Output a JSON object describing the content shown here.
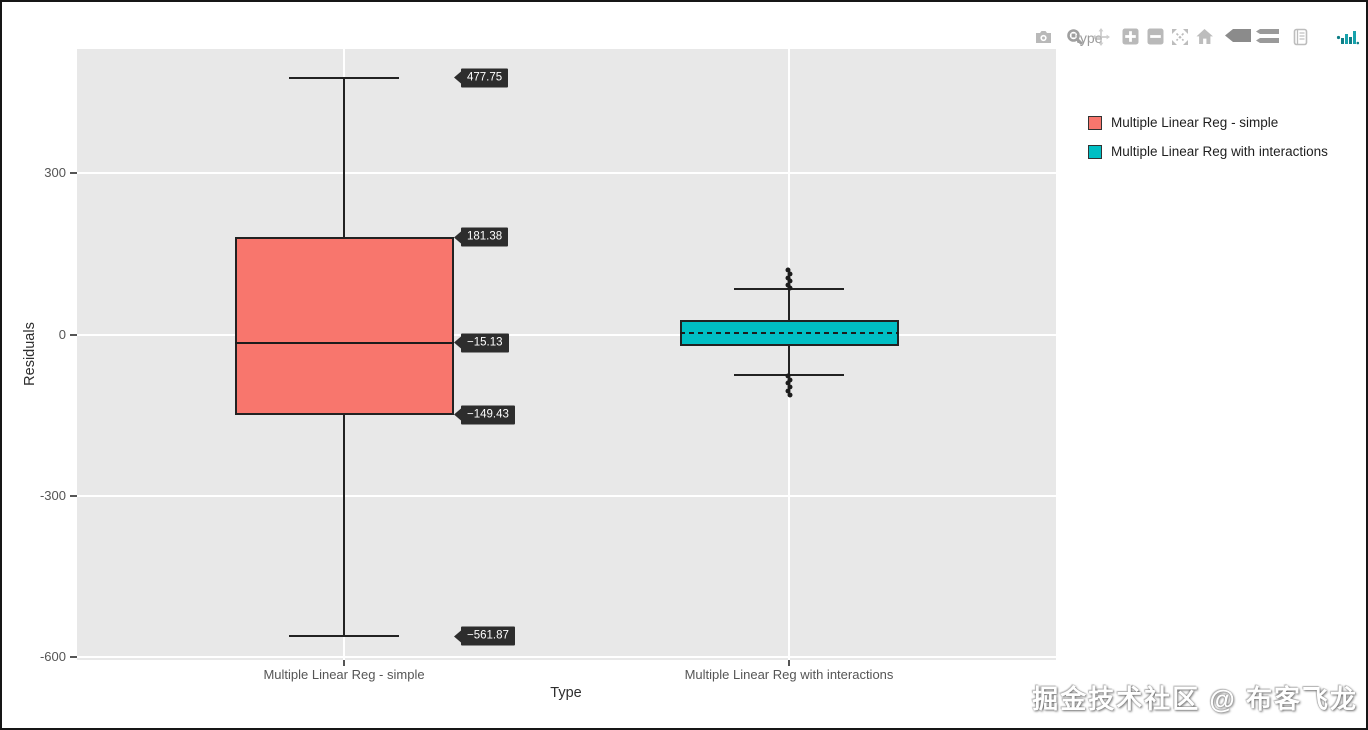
{
  "page": {
    "watermark": "掘金技术社区 @ 布客飞龙"
  },
  "modebar": {
    "buttons": [
      "download-plot-as-png",
      "zoom",
      "pan",
      "zoom-in",
      "zoom-out",
      "autoscale",
      "reset-axes",
      "show-closest-data-on-hover",
      "compare-data-on-hover",
      "notes",
      "plotly-logo"
    ]
  },
  "chart_data": {
    "type": "box",
    "title": "",
    "xlabel": "Type",
    "ylabel": "Residuals",
    "legend_title": "type",
    "legend_position": "right",
    "grid": true,
    "categories": [
      "Multiple Linear Reg - simple",
      "Multiple Linear Reg with interactions"
    ],
    "ytick_labels": [
      "300",
      "0",
      "-300",
      "-600"
    ],
    "ytick_values": [
      300,
      0,
      -300,
      -600
    ],
    "ylim": [
      -606,
      532
    ],
    "series": [
      {
        "name": "Multiple Linear Reg - simple",
        "color": "#F8766D",
        "whisker_low": -561.87,
        "q1": -149.43,
        "median": -15.13,
        "q3": 181.38,
        "whisker_high": 477.75,
        "median_dashed": false,
        "outliers": []
      },
      {
        "name": "Multiple Linear Reg with interactions",
        "color": "#00BFC4",
        "whisker_low": -74.5,
        "q1": -21.4,
        "median": 2.8,
        "q3": 26.1,
        "whisker_high": 83.8,
        "median_dashed": true,
        "outliers": [
          121,
          113,
          106,
          99,
          93,
          87,
          -78,
          -84,
          -91,
          -98,
          -105,
          -112
        ]
      }
    ],
    "annotations": [
      {
        "label": "477.75",
        "value": 477.75
      },
      {
        "label": "181.38",
        "value": 181.38
      },
      {
        "label": "−15.13",
        "value": -15.13
      },
      {
        "label": "−149.43",
        "value": -149.43
      },
      {
        "label": "−561.87",
        "value": -561.87
      }
    ]
  }
}
